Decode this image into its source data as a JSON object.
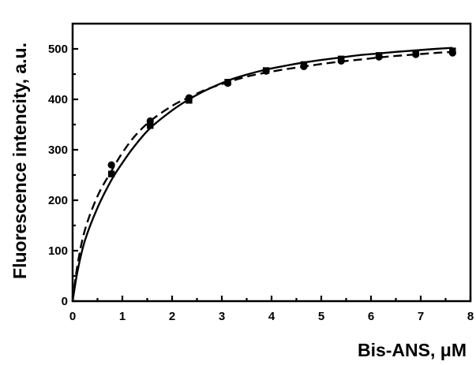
{
  "chart_data": {
    "type": "scatter",
    "title": "",
    "xlabel": "Bis-ANS, μM",
    "ylabel": "Fluorescence intencity, a.u.",
    "xlim": [
      0,
      8
    ],
    "ylim": [
      0,
      550
    ],
    "xticks": [
      0,
      1,
      2,
      3,
      4,
      5,
      6,
      7,
      8
    ],
    "yticks": [
      0,
      100,
      200,
      300,
      400,
      500
    ],
    "grid": false,
    "legend": "none",
    "series": [
      {
        "marker": "circle",
        "color": "#000000",
        "x": [
          0.78,
          1.56,
          2.34,
          3.12,
          3.89,
          4.65,
          5.4,
          6.16,
          6.9,
          7.64
        ],
        "y": [
          270,
          357,
          403,
          432,
          456,
          465,
          476,
          484,
          489,
          492
        ]
      },
      {
        "marker": "square",
        "color": "#000000",
        "x": [
          0.78,
          1.56,
          2.34,
          3.12,
          3.89,
          4.65,
          5.4,
          6.16,
          6.9,
          7.64
        ],
        "y": [
          252,
          348,
          398,
          434,
          457,
          469,
          480,
          487,
          492,
          496
        ]
      }
    ],
    "fits": [
      {
        "style": "solid",
        "color": "#000000",
        "x": [
          0,
          0.1,
          0.25,
          0.5,
          0.78,
          1.0,
          1.25,
          1.56,
          2.0,
          2.34,
          2.7,
          3.12,
          3.5,
          3.89,
          4.3,
          4.65,
          5.0,
          5.4,
          5.8,
          6.16,
          6.5,
          6.9,
          7.3,
          7.64
        ],
        "y": [
          0,
          60,
          121,
          185,
          240,
          274,
          308,
          343,
          378,
          400,
          419,
          437,
          449,
          459,
          467,
          473,
          478,
          483,
          488,
          491,
          494,
          497,
          500,
          502
        ]
      },
      {
        "style": "dashed",
        "color": "#000000",
        "x": [
          0,
          0.1,
          0.25,
          0.5,
          0.78,
          1.0,
          1.25,
          1.56,
          2.0,
          2.34,
          2.7,
          3.12,
          3.5,
          3.89,
          4.3,
          4.65,
          5.0,
          5.4,
          5.8,
          6.16,
          6.5,
          6.9,
          7.3,
          7.64
        ],
        "y": [
          0,
          73,
          142,
          208,
          258,
          294,
          327,
          357,
          387,
          404,
          420,
          434,
          445,
          453,
          460,
          465,
          470,
          475,
          479,
          483,
          486,
          489,
          492,
          494
        ]
      }
    ]
  }
}
